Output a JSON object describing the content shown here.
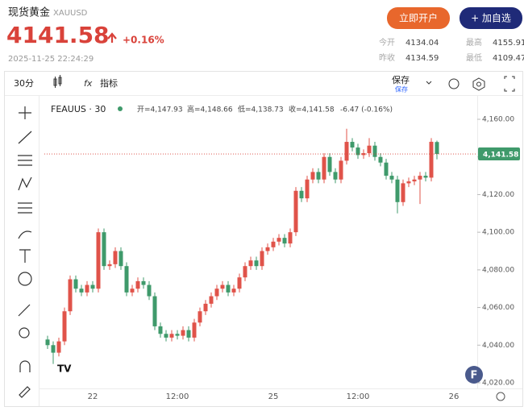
{
  "header": {
    "title": "现货黄金",
    "code": "XAUUSD",
    "price": "4141.58",
    "change": "+0.16%",
    "time": "2025-11-25 22:24:29",
    "buttons": [
      "立即开户",
      "+ 加自选"
    ],
    "stats": [
      {
        "label": "今开",
        "value": "4134.04"
      },
      {
        "label": "最高",
        "value": "4155.91"
      },
      {
        "label": "昨收",
        "value": "4134.59"
      },
      {
        "label": "最低",
        "value": "4109.47"
      }
    ]
  },
  "toolbar": {
    "interval": "30分",
    "indicators": "指标",
    "save": "保存",
    "save_sub": "保存"
  },
  "chart_data": {
    "type": "candlestick",
    "symbol": "FEAUUS · 30",
    "ohlc_labels": [
      "开=4,147.93",
      "高=4,148.66",
      "低=4,138.73",
      "收=4,141.58",
      "-6.47 (-0.16%)"
    ],
    "categories": [
      null,
      null,
      null,
      null,
      null,
      null,
      null,
      null,
      "22",
      null,
      null,
      null,
      null,
      null,
      null,
      null,
      null,
      null,
      null,
      null,
      null,
      null,
      null,
      "12:00",
      null,
      null,
      null,
      null,
      null,
      null,
      null,
      null,
      null,
      null,
      null,
      null,
      null,
      null,
      null,
      null,
      "25",
      null,
      null,
      null,
      null,
      null,
      null,
      null,
      null,
      null,
      null,
      null,
      null,
      null,
      null,
      "12:00",
      null,
      null,
      null,
      null,
      null,
      null,
      null,
      null,
      null,
      null,
      null,
      null,
      null,
      null,
      null,
      null,
      "26"
    ],
    "open": [
      4043,
      4040,
      4036,
      4042,
      4058,
      4075,
      4070,
      4068,
      4072,
      4070,
      4100,
      4082,
      4083,
      4090,
      4082,
      4068,
      4070,
      4074,
      4072,
      4066,
      4050,
      4046,
      4044,
      4046,
      4045,
      4048,
      4044,
      4052,
      4058,
      4062,
      4066,
      4070,
      4072,
      4068,
      4070,
      4076,
      4082,
      4085,
      4082,
      4090,
      4092,
      4095,
      4097,
      4094,
      4100,
      4122,
      4118,
      4128,
      4132,
      4128,
      4140,
      4132,
      4128,
      4138,
      4148,
      4145,
      4141,
      4142,
      4146,
      4140,
      4137,
      4130,
      4128,
      4116,
      4126,
      4127,
      4128,
      4130,
      4129,
      4147.93,
      null,
      null,
      null
    ],
    "high": [
      4045,
      4042,
      4044,
      4060,
      4077,
      4077,
      4072,
      4074,
      4074,
      4102,
      4102,
      4085,
      4092,
      4092,
      4084,
      4072,
      4076,
      4076,
      4074,
      4068,
      4052,
      4048,
      4048,
      4048,
      4050,
      4050,
      4054,
      4060,
      4064,
      4068,
      4072,
      4074,
      4074,
      4072,
      4078,
      4084,
      4087,
      4087,
      4092,
      4094,
      4097,
      4099,
      4099,
      4102,
      4124,
      4124,
      4130,
      4134,
      4134,
      4142,
      4142,
      4134,
      4140,
      4155,
      4150,
      4147,
      4144,
      4150,
      4148,
      4142,
      4139,
      4132,
      4130,
      4128,
      4129,
      4130,
      4132,
      4132,
      4150,
      4148.66,
      null,
      null,
      null
    ],
    "low": [
      4038,
      4030,
      4034,
      4040,
      4056,
      4068,
      4066,
      4066,
      4068,
      4068,
      4080,
      4080,
      4081,
      4080,
      4066,
      4066,
      4068,
      4070,
      4064,
      4048,
      4044,
      4042,
      4042,
      4043,
      4043,
      4042,
      4042,
      4050,
      4056,
      4060,
      4064,
      4068,
      4066,
      4066,
      4068,
      4074,
      4080,
      4080,
      4080,
      4088,
      4090,
      4093,
      4092,
      4092,
      4098,
      4116,
      4116,
      4126,
      4126,
      4126,
      4130,
      4126,
      4126,
      4136,
      4143,
      4139,
      4139,
      4140,
      4138,
      4135,
      4128,
      4126,
      4110,
      4114,
      4124,
      4125,
      4115,
      4127,
      4127,
      4138.73,
      null,
      null,
      null
    ],
    "close": [
      4040,
      4036,
      4042,
      4058,
      4075,
      4070,
      4068,
      4072,
      4070,
      4100,
      4082,
      4083,
      4090,
      4082,
      4068,
      4070,
      4074,
      4072,
      4066,
      4050,
      4046,
      4044,
      4046,
      4045,
      4048,
      4044,
      4052,
      4058,
      4062,
      4066,
      4070,
      4072,
      4068,
      4070,
      4076,
      4082,
      4085,
      4082,
      4090,
      4092,
      4095,
      4097,
      4094,
      4100,
      4122,
      4118,
      4128,
      4132,
      4128,
      4140,
      4132,
      4128,
      4138,
      4148,
      4145,
      4141,
      4142,
      4146,
      4140,
      4137,
      4130,
      4128,
      4116,
      4126,
      4127,
      4128,
      4130,
      4129,
      4148.05,
      4141.58,
      null,
      null,
      null
    ],
    "up_color": "#e0534a",
    "down_color": "#3f9a6b",
    "ylim": [
      4017,
      4172
    ],
    "yticks": [
      {
        "value": 4020,
        "label": "4,020.00"
      },
      {
        "value": 4040,
        "label": "4,040.00"
      },
      {
        "value": 4060,
        "label": "4,060.00"
      },
      {
        "value": 4080,
        "label": "4,080.00"
      },
      {
        "value": 4100,
        "label": "4,100.00"
      },
      {
        "value": 4120,
        "label": "4,120.00"
      },
      {
        "value": 4140,
        "label": "4,140.00"
      },
      {
        "value": 4160,
        "label": "4,160.00"
      }
    ],
    "price_line": {
      "value": 4141.58,
      "label": "4,141.58"
    }
  }
}
